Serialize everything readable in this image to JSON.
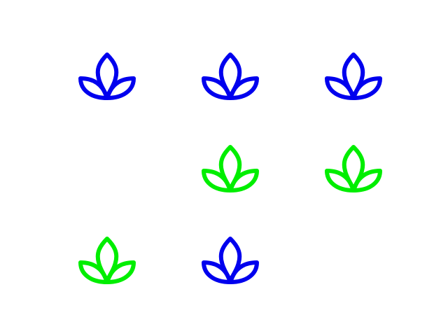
{
  "colors": {
    "blue": "#0000ee",
    "green": "#00ee00",
    "background": "#ffffff"
  },
  "grid": {
    "rows": 3,
    "cols": 3,
    "cells": [
      {
        "row": 0,
        "col": 0,
        "icon": "lotus-icon",
        "color": "blue"
      },
      {
        "row": 0,
        "col": 1,
        "icon": "lotus-icon",
        "color": "blue"
      },
      {
        "row": 0,
        "col": 2,
        "icon": "lotus-icon",
        "color": "blue"
      },
      {
        "row": 1,
        "col": 0,
        "icon": null,
        "color": null
      },
      {
        "row": 1,
        "col": 1,
        "icon": "lotus-icon",
        "color": "green"
      },
      {
        "row": 1,
        "col": 2,
        "icon": "lotus-icon",
        "color": "green"
      },
      {
        "row": 2,
        "col": 0,
        "icon": "lotus-icon",
        "color": "green"
      },
      {
        "row": 2,
        "col": 1,
        "icon": "lotus-icon",
        "color": "blue"
      },
      {
        "row": 2,
        "col": 2,
        "icon": null,
        "color": null
      }
    ]
  }
}
